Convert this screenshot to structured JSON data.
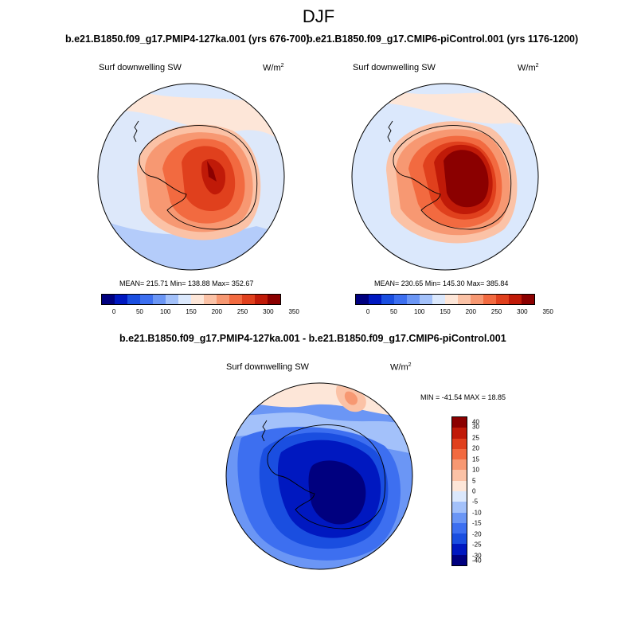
{
  "figure": {
    "season": "DJF"
  },
  "panels": [
    {
      "title": "b.e21.B1850.f09_g17.PMIP4-127ka.001 (yrs 676-700)",
      "variable": "Surf downwelling SW",
      "units": "W/m",
      "units_exp": "2",
      "stats": "MEAN= 215.71  Min= 138.88  Max= 352.67",
      "mean": 215.71,
      "min": 138.88,
      "max": 352.67
    },
    {
      "title": "b.e21.B1850.f09_g17.CMIP6-piControl.001 (yrs 1176-1200)",
      "variable": "Surf downwelling SW",
      "units": "W/m",
      "units_exp": "2",
      "stats": "MEAN= 230.65  Min= 145.30  Max= 385.84",
      "mean": 230.65,
      "min": 145.3,
      "max": 385.84
    }
  ],
  "abs_colorbar": {
    "colors": [
      "#00007f",
      "#0018c0",
      "#1a4ee0",
      "#3d6ff0",
      "#6b96f5",
      "#a3c1fa",
      "#dbe8fc",
      "#fde6d8",
      "#fbc2a6",
      "#f79872",
      "#f26a40",
      "#e0401d",
      "#c01a08",
      "#8b0000"
    ],
    "tick_labels": [
      "0",
      "50",
      "100",
      "150",
      "200",
      "250",
      "300",
      "350"
    ]
  },
  "diff_panel": {
    "title": "b.e21.B1850.f09_g17.PMIP4-127ka.001 - b.e21.B1850.f09_g17.CMIP6-piControl.001",
    "variable": "Surf downwelling SW",
    "units": "W/m",
    "units_exp": "2",
    "stats": "MIN = -41.54 MAX =  18.85",
    "min": -41.54,
    "max": 18.85
  },
  "diff_colorbar": {
    "colors": [
      "#8b0000",
      "#c01a08",
      "#e0401d",
      "#f26a40",
      "#f79872",
      "#fbc2a6",
      "#fde6d8",
      "#dbe8fc",
      "#a3c1fa",
      "#6b96f5",
      "#3d6ff0",
      "#1a4ee0",
      "#0018c0",
      "#00007f"
    ],
    "tick_labels": [
      "40",
      "30",
      "25",
      "20",
      "15",
      "10",
      "5",
      "0",
      "-5",
      "-10",
      "-15",
      "-20",
      "-25",
      "-30",
      "-40"
    ]
  }
}
